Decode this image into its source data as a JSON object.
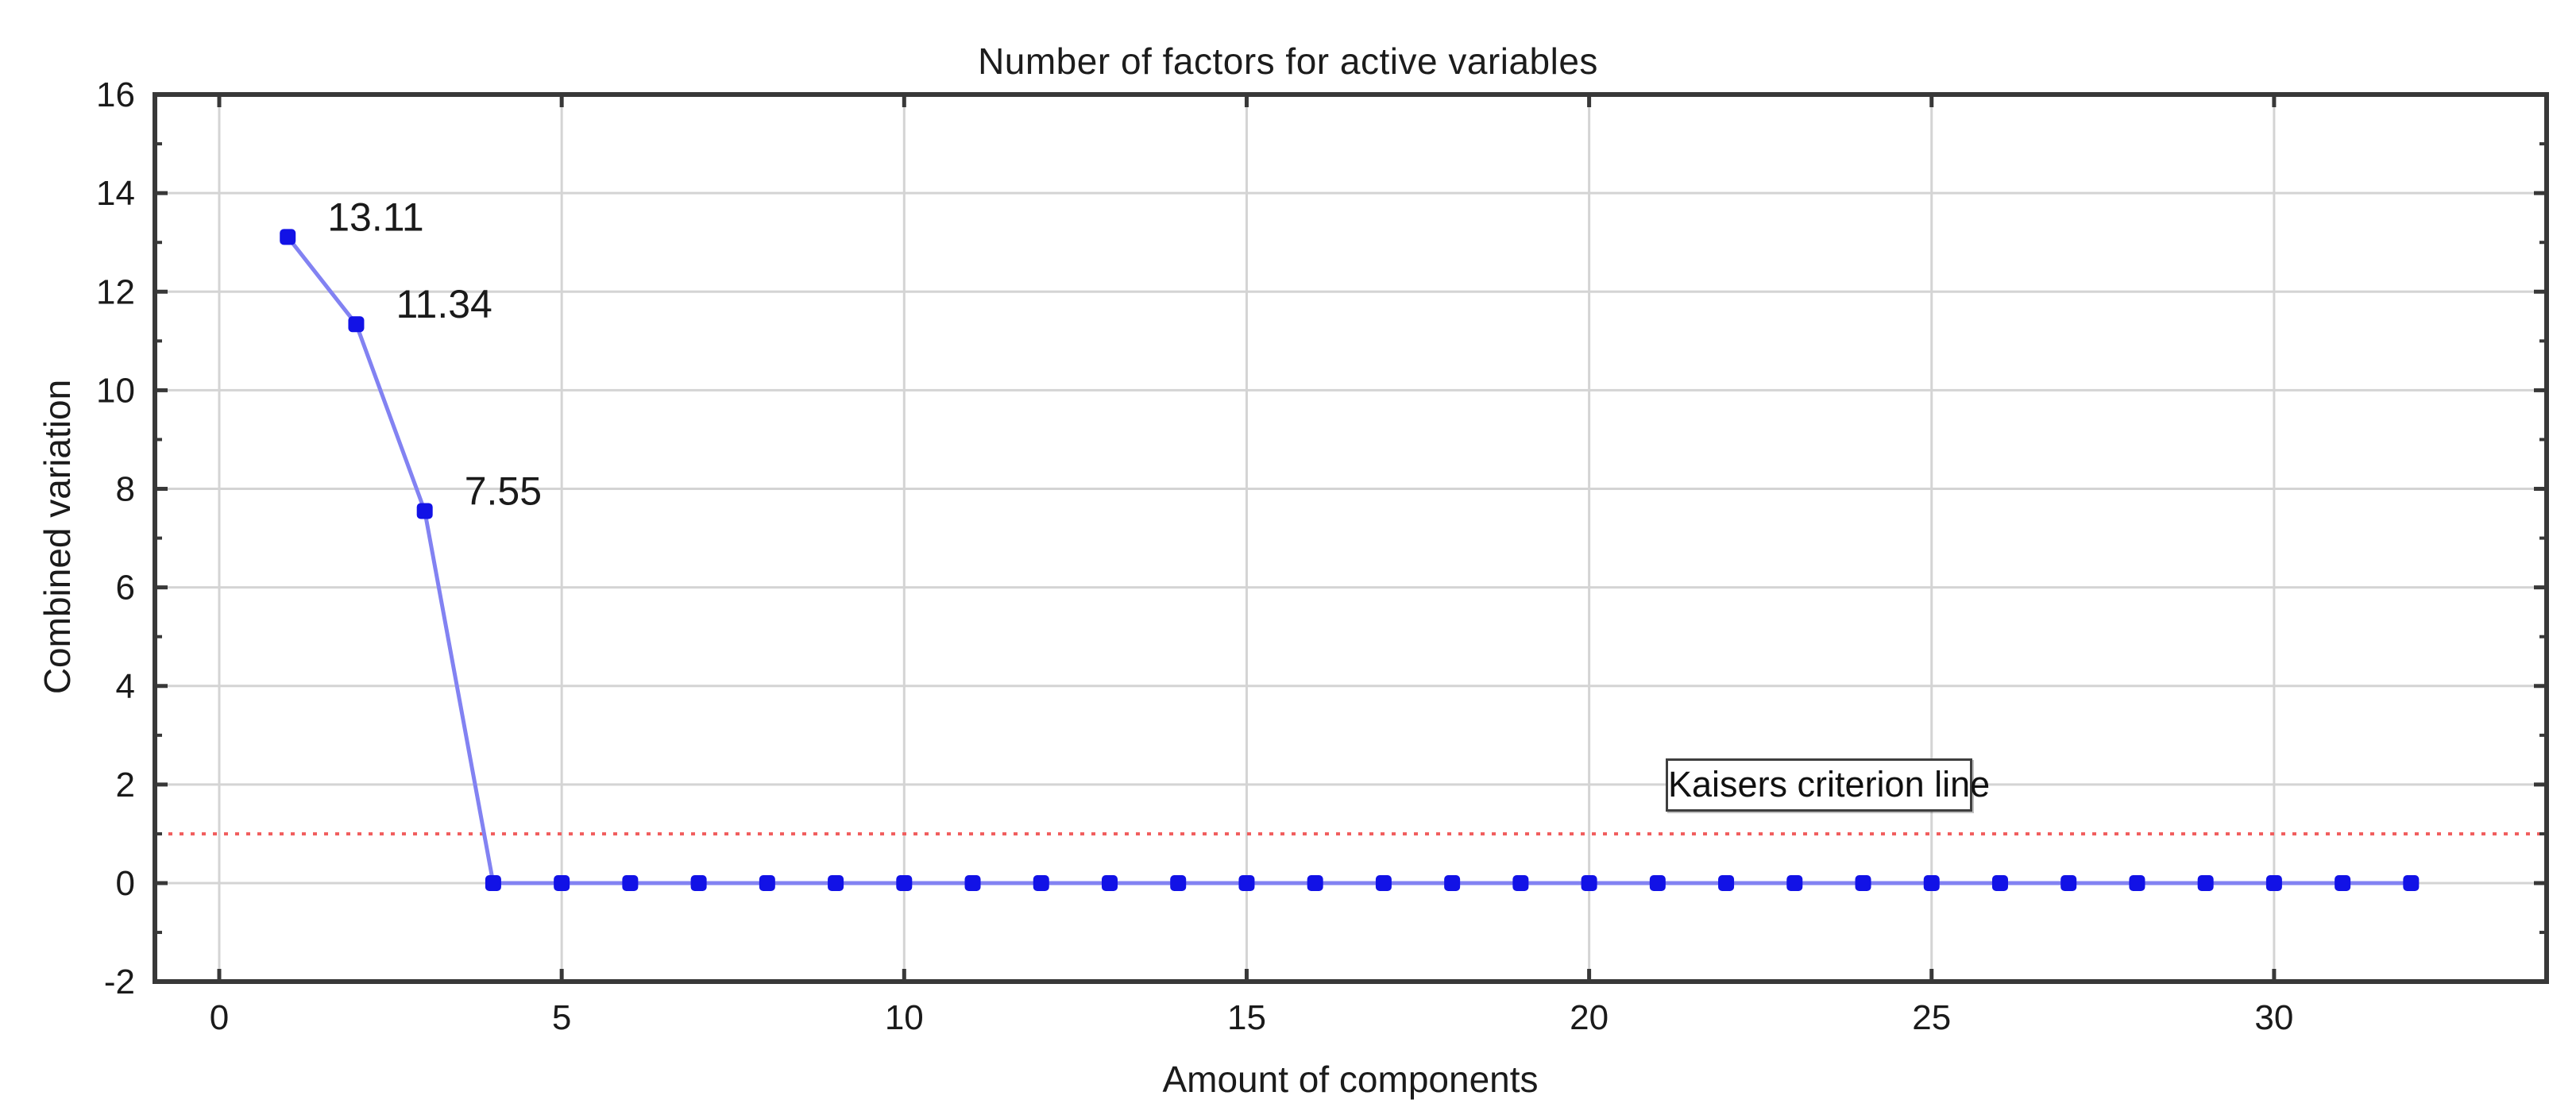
{
  "chart_data": {
    "type": "line",
    "title": "Number of factors for active variables",
    "xlabel": "Amount of components",
    "ylabel": "Combined variation",
    "x": [
      1,
      2,
      3,
      4,
      5,
      6,
      7,
      8,
      9,
      10,
      11,
      12,
      13,
      14,
      15,
      16,
      17,
      18,
      19,
      20,
      21,
      22,
      23,
      24,
      25,
      26,
      27,
      28,
      29,
      30,
      31,
      32
    ],
    "values": [
      13.11,
      11.34,
      7.55,
      0,
      0,
      0,
      0,
      0,
      0,
      0,
      0,
      0,
      0,
      0,
      0,
      0,
      0,
      0,
      0,
      0,
      0,
      0,
      0,
      0,
      0,
      0,
      0,
      0,
      0,
      0,
      0,
      0
    ],
    "point_labels": [
      {
        "x": 1,
        "text": "13.11"
      },
      {
        "x": 2,
        "text": "11.34"
      },
      {
        "x": 3,
        "text": "7.55"
      }
    ],
    "xticks": [
      0,
      5,
      10,
      15,
      20,
      25,
      30
    ],
    "yticks_major": [
      -2,
      0,
      2,
      4,
      6,
      8,
      10,
      12,
      14,
      16
    ],
    "yticks_minor": [
      -1,
      1,
      3,
      5,
      7,
      9,
      11,
      13,
      15
    ],
    "xlim": [
      -0.94,
      33.98
    ],
    "ylim": [
      -2,
      16
    ],
    "grid": true,
    "legend_position": "none",
    "reference_line": {
      "y": 1,
      "label": "Kaisers criterion line"
    },
    "colors": {
      "marker": "#1212e6",
      "series_line": "#8282f2",
      "reference_line": "#f15f5f",
      "gridline": "#d4d4d4",
      "axis": "#383838",
      "text": "#1a1a1a",
      "background": "#ffffff"
    }
  }
}
